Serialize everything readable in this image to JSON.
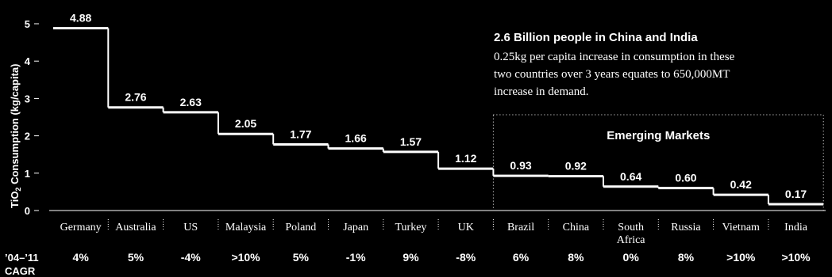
{
  "chart_data": {
    "type": "bar",
    "ylabel_main": "TiO",
    "ylabel_sub": "2",
    "ylabel_rest": " Consumption (kg/capita)",
    "ylim": [
      0,
      5
    ],
    "yticks": [
      "0",
      "1",
      "2",
      "3",
      "4",
      "5"
    ],
    "categories": [
      "Germany",
      "Australia",
      "US",
      "Malaysia",
      "Poland",
      "Japan",
      "Turkey",
      "UK",
      "Brazil",
      "China",
      "South Africa",
      "Russia",
      "Vietnam",
      "India"
    ],
    "category_lines": [
      [
        "Germany"
      ],
      [
        "Australia"
      ],
      [
        "US"
      ],
      [
        "Malaysia"
      ],
      [
        "Poland"
      ],
      [
        "Japan"
      ],
      [
        "Turkey"
      ],
      [
        "UK"
      ],
      [
        "Brazil"
      ],
      [
        "China"
      ],
      [
        "South",
        "Africa"
      ],
      [
        "Russia"
      ],
      [
        "Vietnam"
      ],
      [
        "India"
      ]
    ],
    "values": [
      4.88,
      2.76,
      2.63,
      2.05,
      1.77,
      1.66,
      1.57,
      1.12,
      0.93,
      0.92,
      0.64,
      0.6,
      0.42,
      0.17
    ],
    "value_labels": [
      "4.88",
      "2.76",
      "2.63",
      "2.05",
      "1.77",
      "1.66",
      "1.57",
      "1.12",
      "0.93",
      "0.92",
      "0.64",
      "0.60",
      "0.42",
      "0.17"
    ],
    "cagr_label_line1": "’04–’11",
    "cagr_label_line2": "CAGR",
    "cagr": [
      "4%",
      "5%",
      "-4%",
      ">10%",
      "5%",
      "-1%",
      "9%",
      "-8%",
      "6%",
      "8%",
      "0%",
      "8%",
      ">10%",
      ">10%"
    ],
    "annotation_title": "2.6 Billion people in China and India",
    "annotation_body": [
      "0.25kg per capita increase in consumption in these",
      "two countries over 3 years equates to 650,000MT",
      "increase in demand."
    ],
    "emerging_label": "Emerging Markets",
    "emerging_range": [
      "Brazil",
      "India"
    ],
    "colors": {
      "background": "#000000",
      "foreground": "#ffffff"
    }
  }
}
